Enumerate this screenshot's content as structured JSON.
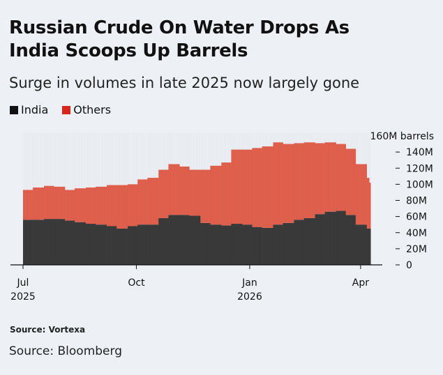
{
  "header": {
    "title_line1": "Russian Crude On Water Drops As",
    "title_line2": "India Scoops Up Barrels",
    "subtitle": "Surge in volumes in late 2025 now largely gone"
  },
  "footer": {
    "chart_source": "Source: Vortexa",
    "source": "Source: Bloomberg"
  },
  "chart_data": {
    "type": "bar",
    "stacked": true,
    "title": "Russian Crude On Water Drops As India Scoops Up Barrels",
    "subtitle": "Surge in volumes in late 2025 now largely gone",
    "ylabel": "160M barrels",
    "ylim": [
      0,
      160
    ],
    "y_unit": "M barrels",
    "y_ticks": [
      "0",
      "20M",
      "40M",
      "60M",
      "80M",
      "100M",
      "120M",
      "140M",
      "160M barrels"
    ],
    "y_tick_values": [
      0,
      20,
      40,
      60,
      80,
      100,
      120,
      140,
      160
    ],
    "x_ticks": [
      {
        "date": "2025-07-01",
        "label": "Jul",
        "sublabel": "2025"
      },
      {
        "date": "2025-10-01",
        "label": "Oct",
        "sublabel": ""
      },
      {
        "date": "2026-01-01",
        "label": "Jan",
        "sublabel": "2026"
      },
      {
        "date": "2026-04-01",
        "label": "Apr",
        "sublabel": ""
      }
    ],
    "legend": "top-left",
    "grid": false,
    "colors": {
      "India": "#3a3a3a",
      "Others": "#e2604e",
      "legend_India": "#111111",
      "legend_Others": "#d8261c"
    },
    "x": [
      "2025-07-01",
      "2025-07-09",
      "2025-07-18",
      "2025-07-26",
      "2025-08-04",
      "2025-08-12",
      "2025-08-21",
      "2025-08-29",
      "2025-09-07",
      "2025-09-15",
      "2025-09-24",
      "2025-10-02",
      "2025-10-10",
      "2025-10-19",
      "2025-10-27",
      "2025-11-05",
      "2025-11-13",
      "2025-11-22",
      "2025-11-30",
      "2025-12-09",
      "2025-12-17",
      "2025-12-26",
      "2026-01-03",
      "2026-01-11",
      "2026-01-20",
      "2026-01-28",
      "2026-02-06",
      "2026-02-14",
      "2026-02-23",
      "2026-03-03",
      "2026-03-12",
      "2026-03-20",
      "2026-03-28",
      "2026-04-06",
      "2026-04-08"
    ],
    "series": [
      {
        "name": "India",
        "values": [
          56,
          56,
          57,
          57,
          55,
          53,
          51,
          50,
          48,
          45,
          48,
          50,
          50,
          58,
          62,
          62,
          61,
          52,
          50,
          49,
          51,
          50,
          47,
          46,
          50,
          52,
          56,
          58,
          63,
          66,
          67,
          62,
          50,
          45,
          45
        ]
      },
      {
        "name": "Others",
        "values": [
          37,
          40,
          41,
          40,
          38,
          42,
          45,
          47,
          51,
          54,
          52,
          56,
          58,
          60,
          63,
          60,
          57,
          66,
          73,
          78,
          92,
          93,
          98,
          101,
          102,
          98,
          95,
          94,
          88,
          86,
          83,
          82,
          75,
          63,
          57
        ]
      }
    ]
  }
}
